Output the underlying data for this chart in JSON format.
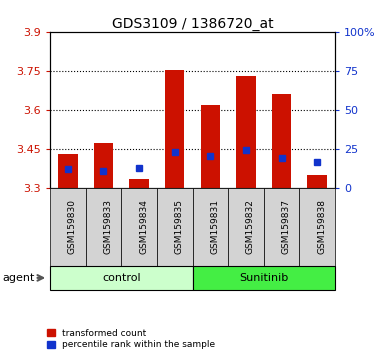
{
  "title": "GDS3109 / 1386720_at",
  "samples": [
    "GSM159830",
    "GSM159833",
    "GSM159834",
    "GSM159835",
    "GSM159831",
    "GSM159832",
    "GSM159837",
    "GSM159838"
  ],
  "red_values": [
    3.43,
    3.47,
    3.335,
    3.755,
    3.62,
    3.73,
    3.66,
    3.35
  ],
  "blue_values": [
    3.37,
    3.365,
    3.375,
    3.437,
    3.422,
    3.445,
    3.413,
    3.4
  ],
  "ylim": [
    3.3,
    3.9
  ],
  "yticks": [
    3.3,
    3.45,
    3.6,
    3.75,
    3.9
  ],
  "y2ticks": [
    0,
    25,
    50,
    75,
    100
  ],
  "y2lim": [
    0,
    100
  ],
  "bar_bottom": 3.3,
  "bar_color": "#cc1100",
  "blue_color": "#1133cc",
  "control_color": "#ccffcc",
  "sunitinib_color": "#44ee44",
  "label_color_left": "#cc1100",
  "label_color_right": "#1133cc",
  "agent_label": "agent",
  "control_label": "control",
  "sunitinib_label": "Sunitinib",
  "legend_red": "transformed count",
  "legend_blue": "percentile rank within the sample",
  "bar_width": 0.55,
  "bg_color": "#d3d3d3",
  "n_control": 4,
  "n_sunitinib": 4
}
